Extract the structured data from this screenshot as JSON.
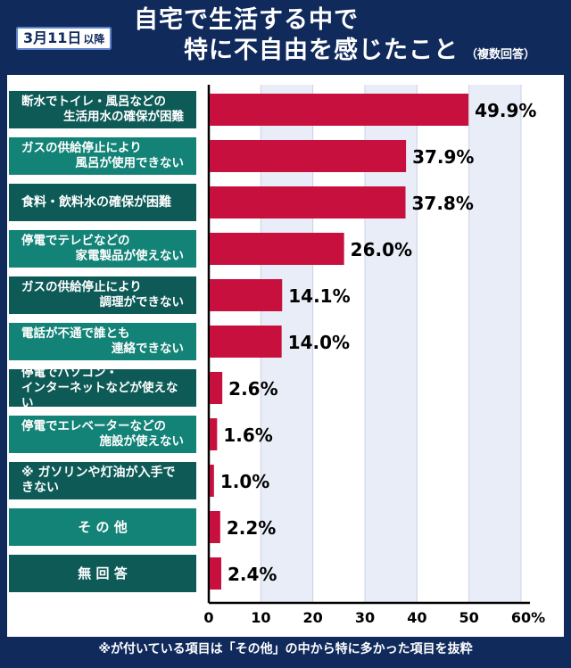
{
  "header": {
    "date_main": "3月11日",
    "date_suffix": "以降",
    "title_line1": "自宅で生活する中で",
    "title_line2": "特に不自由を感じたこと",
    "title_note": "（複数回答）"
  },
  "footer": {
    "note": "※が付いている項目は「その他」の中から特に多かった項目を抜粋"
  },
  "colors": {
    "bar": "#c8103f",
    "label_bg_dark": "#0d5a57",
    "label_bg_light": "#138277",
    "header_bg": "#102a5c"
  },
  "chart_data": {
    "type": "bar",
    "orientation": "horizontal",
    "categories": [
      [
        "断水でトイレ・風呂などの",
        "生活用水の確保が困難"
      ],
      [
        "ガスの供給停止により",
        "風呂が使用できない"
      ],
      [
        "食料・飲料水の確保が困難"
      ],
      [
        "停電でテレビなどの",
        "家電製品が使えない"
      ],
      [
        "ガスの供給停止により",
        "調理ができない"
      ],
      [
        "電話が不通で誰とも",
        "連絡できない"
      ],
      [
        "停電でパソコン・",
        "インターネットなどが使えない"
      ],
      [
        "停電でエレベーターなどの",
        "施設が使えない"
      ],
      [
        "※ ガソリンや灯油が入手できない"
      ],
      [
        "その他"
      ],
      [
        "無回答"
      ]
    ],
    "values": [
      49.9,
      37.9,
      37.8,
      26.0,
      14.1,
      14.0,
      2.6,
      1.6,
      1.0,
      2.2,
      2.4
    ],
    "value_labels": [
      "49.9%",
      "37.9%",
      "37.8%",
      "26.0%",
      "14.1%",
      "14.0%",
      "2.6%",
      "1.6%",
      "1.0%",
      "2.2%",
      "2.4%"
    ],
    "x_ticks": [
      "0",
      "10",
      "20",
      "30",
      "40",
      "50",
      "60%"
    ],
    "xlim": [
      0,
      60
    ],
    "grid": true
  }
}
